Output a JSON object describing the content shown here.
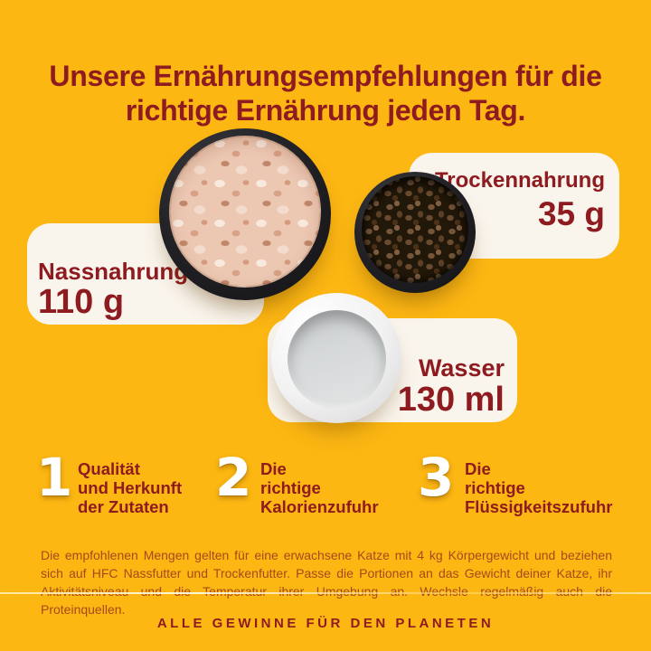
{
  "title": {
    "line1": "Unsere Ernährungsempfehlungen für die",
    "line2": "richtige Ernährung jeden Tag."
  },
  "bowls": {
    "wet": {
      "label": "Nassnahrung",
      "amount": "110 g"
    },
    "dry": {
      "label": "Trockennahrung",
      "amount": "35 g"
    },
    "water": {
      "label": "Wasser",
      "amount": "130 ml"
    }
  },
  "points": [
    {
      "number": "1",
      "lines": [
        "Qualität",
        "und Herkunft",
        "der Zutaten"
      ]
    },
    {
      "number": "2",
      "lines": [
        "Die",
        "richtige",
        "Kalorienzufuhr"
      ]
    },
    {
      "number": "3",
      "lines": [
        "Die",
        "richtige",
        "Flüssigkeitszufuhr"
      ]
    }
  ],
  "disclaimer": {
    "text": "Die empfohlenen Mengen gelten für eine erwachsene Katze mit 4 kg Körpergewicht und beziehen sich auf HFC Nassfutter und Trockenfutter. Passe die Portionen an das Gewicht deiner Katze, ihr Aktivitätsniveau und die Temperatur ihrer Umgebung an. Wechsle regelmäßig auch die Proteinquellen."
  },
  "footer": {
    "tagline": "ALLE GEWINNE FÜR DEN PLANETEN"
  },
  "colors": {
    "background": "#fcb713",
    "heading": "#8e1b20",
    "body_text": "#a5491b",
    "card": "#faf5ec",
    "number": "#ffffff"
  }
}
